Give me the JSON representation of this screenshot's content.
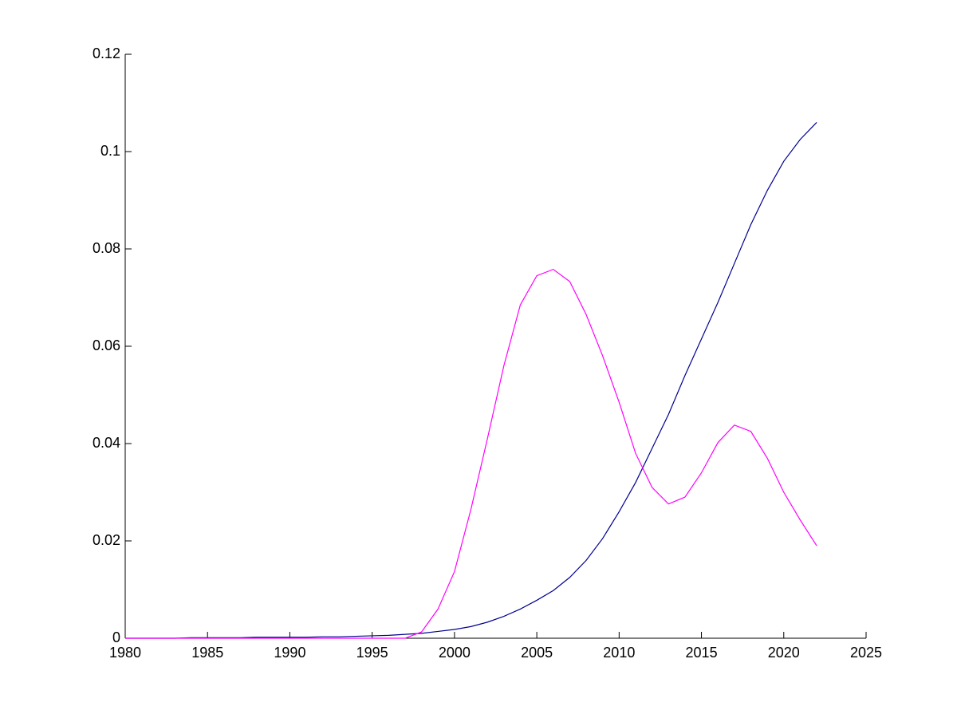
{
  "chart_data": {
    "type": "line",
    "x": [
      1980,
      1981,
      1982,
      1983,
      1984,
      1985,
      1986,
      1987,
      1988,
      1989,
      1990,
      1991,
      1992,
      1993,
      1994,
      1995,
      1996,
      1997,
      1998,
      1999,
      2000,
      2001,
      2002,
      2003,
      2004,
      2005,
      2006,
      2007,
      2008,
      2009,
      2010,
      2011,
      2012,
      2013,
      2014,
      2015,
      2016,
      2017,
      2018,
      2019,
      2020,
      2021,
      2022
    ],
    "series": [
      {
        "color": "#000090",
        "values": [
          0,
          0,
          0,
          0,
          0.0001,
          0.0001,
          0.0001,
          0.0001,
          0.0002,
          0.0002,
          0.0002,
          0.0002,
          0.0003,
          0.0003,
          0.0004,
          0.0005,
          0.0006,
          0.0008,
          0.001,
          0.0014,
          0.0018,
          0.0024,
          0.0033,
          0.0045,
          0.006,
          0.0078,
          0.0098,
          0.0125,
          0.016,
          0.0205,
          0.026,
          0.032,
          0.039,
          0.046,
          0.054,
          0.0615,
          0.069,
          0.077,
          0.085,
          0.092,
          0.098,
          0.1025,
          0.106
        ]
      },
      {
        "color": "#ff00ff",
        "values": [
          0,
          0,
          0,
          0,
          0,
          0,
          0,
          0,
          0,
          0,
          0,
          0,
          0,
          0,
          0,
          0,
          0,
          0,
          0.0013,
          0.006,
          0.0137,
          0.0265,
          0.041,
          0.056,
          0.0685,
          0.0745,
          0.0758,
          0.0733,
          0.0665,
          0.058,
          0.0485,
          0.038,
          0.031,
          0.0276,
          0.029,
          0.034,
          0.0402,
          0.0438,
          0.0425,
          0.037,
          0.03,
          0.0243,
          0.019
        ]
      }
    ],
    "xlim": [
      1980,
      2025
    ],
    "xticks": [
      1980,
      1985,
      1990,
      1995,
      2000,
      2005,
      2010,
      2015,
      2020,
      2025
    ],
    "ylim": [
      0,
      0.12
    ],
    "yticks": [
      0,
      0.02,
      0.04,
      0.06,
      0.08,
      0.1,
      0.12
    ]
  }
}
